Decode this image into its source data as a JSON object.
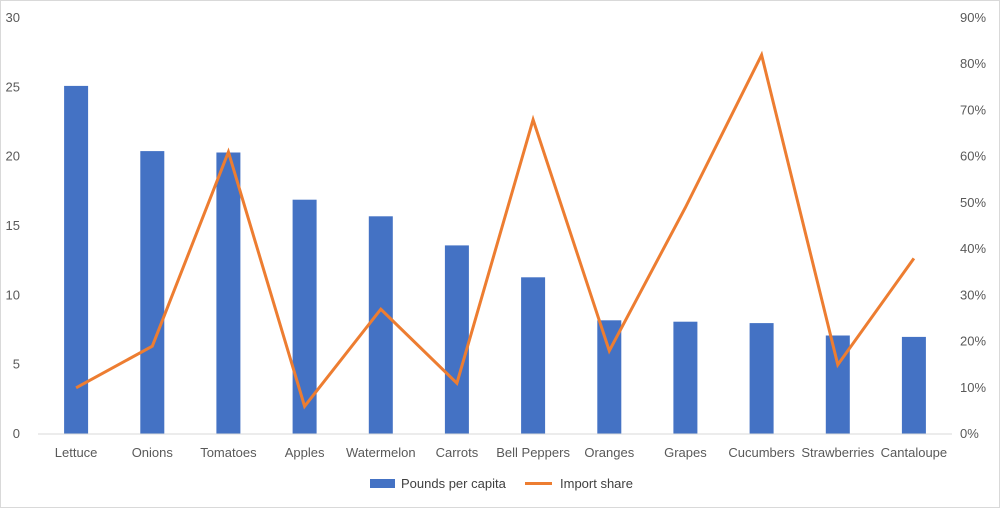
{
  "chart_data": {
    "type": "bar",
    "categories": [
      "Lettuce",
      "Onions",
      "Tomatoes",
      "Apples",
      "Watermelon",
      "Carrots",
      "Bell Peppers",
      "Oranges",
      "Grapes",
      "Cucumbers",
      "Strawberries",
      "Cantaloupe"
    ],
    "series": [
      {
        "name": "Pounds per capita",
        "type": "bar",
        "axis": "left",
        "color": "#4472C4",
        "values": [
          25.1,
          20.4,
          20.3,
          16.9,
          15.7,
          13.6,
          11.3,
          8.2,
          8.1,
          8.0,
          7.1,
          7.0
        ]
      },
      {
        "name": "Import share",
        "type": "line",
        "axis": "right",
        "color": "#ED7D31",
        "values": [
          0.1,
          0.19,
          0.61,
          0.06,
          0.27,
          0.11,
          0.68,
          0.18,
          0.49,
          0.82,
          0.15,
          0.38
        ]
      }
    ],
    "left_axis": {
      "ylim": [
        0,
        30
      ],
      "ticks": [
        "0",
        "5",
        "10",
        "15",
        "20",
        "25",
        "30"
      ]
    },
    "right_axis": {
      "ylim": [
        0,
        0.9
      ],
      "ticks": [
        "0%",
        "10%",
        "20%",
        "30%",
        "40%",
        "50%",
        "60%",
        "70%",
        "80%",
        "90%"
      ]
    },
    "title": "",
    "xlabel": "",
    "ylabel": "",
    "grid": false,
    "legend": "bottom-center"
  }
}
